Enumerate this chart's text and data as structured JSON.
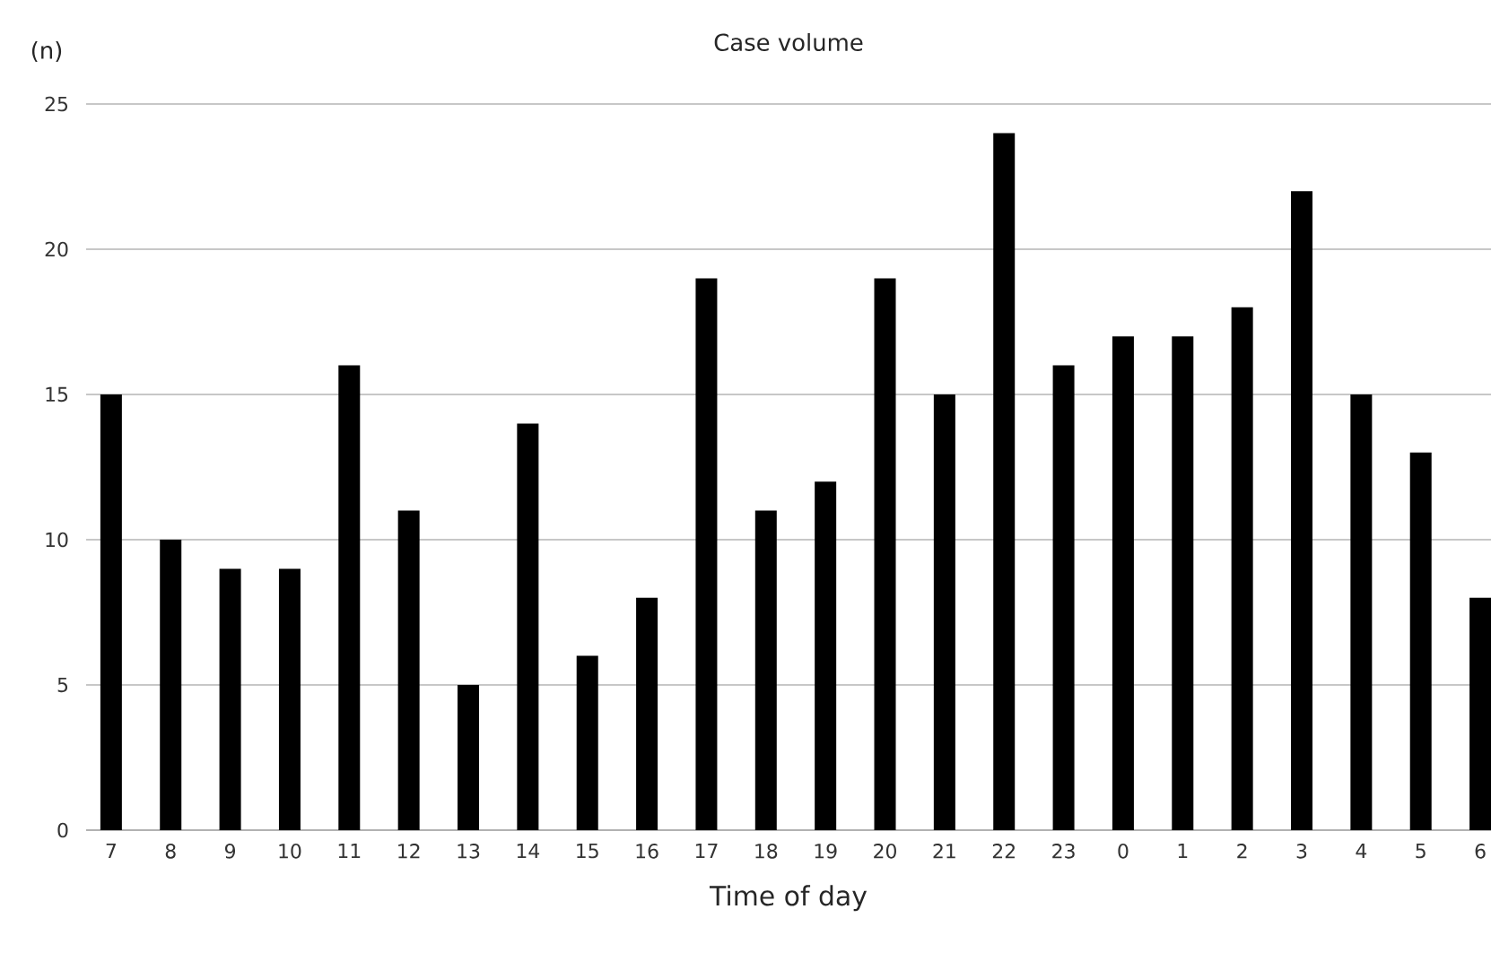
{
  "chart_data": {
    "type": "bar",
    "title": "Case volume",
    "xlabel": "Time of day",
    "ylabel": "(n)",
    "categories": [
      "7",
      "8",
      "9",
      "10",
      "11",
      "12",
      "13",
      "14",
      "15",
      "16",
      "17",
      "18",
      "19",
      "20",
      "21",
      "22",
      "23",
      "0",
      "1",
      "2",
      "3",
      "4",
      "5",
      "6"
    ],
    "values": [
      15,
      10,
      9,
      9,
      16,
      11,
      5,
      14,
      6,
      8,
      19,
      11,
      12,
      19,
      15,
      24,
      16,
      17,
      17,
      18,
      22,
      15,
      13,
      8
    ],
    "color": "#000000",
    "ylim": [
      0,
      25
    ],
    "yticks": [
      0,
      5,
      10,
      15,
      20,
      25
    ],
    "grid": "y"
  }
}
